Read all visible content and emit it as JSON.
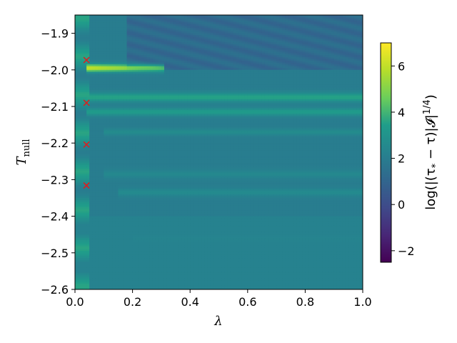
{
  "chart_data": {
    "type": "heatmap",
    "xlabel": "λ",
    "ylabel_main": "T",
    "ylabel_sub": "null",
    "colorbar_label": "log(|(τ* − τ)|𝓘|^{1/4})",
    "colorbar_label_parts": {
      "pre": "log(|(τ",
      "star": "*",
      "mid": " − τ)|𝓘|",
      "exp": "1/4",
      "post": ")"
    },
    "xlim": [
      0.0,
      1.0
    ],
    "ylim": [
      -2.6,
      -1.85
    ],
    "x_ticks": [
      0.0,
      0.2,
      0.4,
      0.6,
      0.8,
      1.0
    ],
    "x_tick_labels": [
      "0.0",
      "0.2",
      "0.4",
      "0.6",
      "0.8",
      "1.0"
    ],
    "y_ticks": [
      -1.9,
      -2.0,
      -2.1,
      -2.2,
      -2.3,
      -2.4,
      -2.5,
      -2.6
    ],
    "y_tick_labels": [
      "−1.9",
      "−2.0",
      "−2.1",
      "−2.2",
      "−2.3",
      "−2.4",
      "−2.5",
      "−2.6"
    ],
    "colorbar_range": [
      -2.5,
      7.0
    ],
    "colorbar_ticks": [
      -2,
      0,
      2,
      4,
      6
    ],
    "colorbar_tick_labels": [
      "−2",
      "0",
      "2",
      "4",
      "6"
    ],
    "colormap": "viridis",
    "markers": [
      {
        "x": 0.04,
        "y": -1.973
      },
      {
        "x": 0.04,
        "y": -2.09
      },
      {
        "x": 0.04,
        "y": -2.204
      },
      {
        "x": 0.04,
        "y": -2.316
      }
    ],
    "marker_color": "#e41a1c",
    "bands": [
      {
        "y": -1.995,
        "x_start": 0.04,
        "x_end": 0.31,
        "peak": 6.2,
        "width": 0.01
      },
      {
        "y": -2.075,
        "x_start": 0.04,
        "x_end": 1.0,
        "peak": 3.6,
        "width": 0.012
      },
      {
        "y": -2.115,
        "x_start": 0.04,
        "x_end": 1.0,
        "peak": 3.4,
        "width": 0.01
      },
      {
        "y": -2.17,
        "x_start": 0.1,
        "x_end": 1.0,
        "peak": 2.7,
        "width": 0.008
      },
      {
        "y": -2.285,
        "x_start": 0.1,
        "x_end": 1.0,
        "peak": 2.5,
        "width": 0.01
      },
      {
        "y": -2.335,
        "x_start": 0.15,
        "x_end": 1.0,
        "peak": 2.6,
        "width": 0.01
      },
      {
        "y": -2.46,
        "x_start": 0.2,
        "x_end": 1.0,
        "peak": 2.3,
        "width": 0.01
      },
      {
        "y": -2.52,
        "x_start": 0.25,
        "x_end": 1.0,
        "peak": 2.2,
        "width": 0.01
      }
    ]
  }
}
